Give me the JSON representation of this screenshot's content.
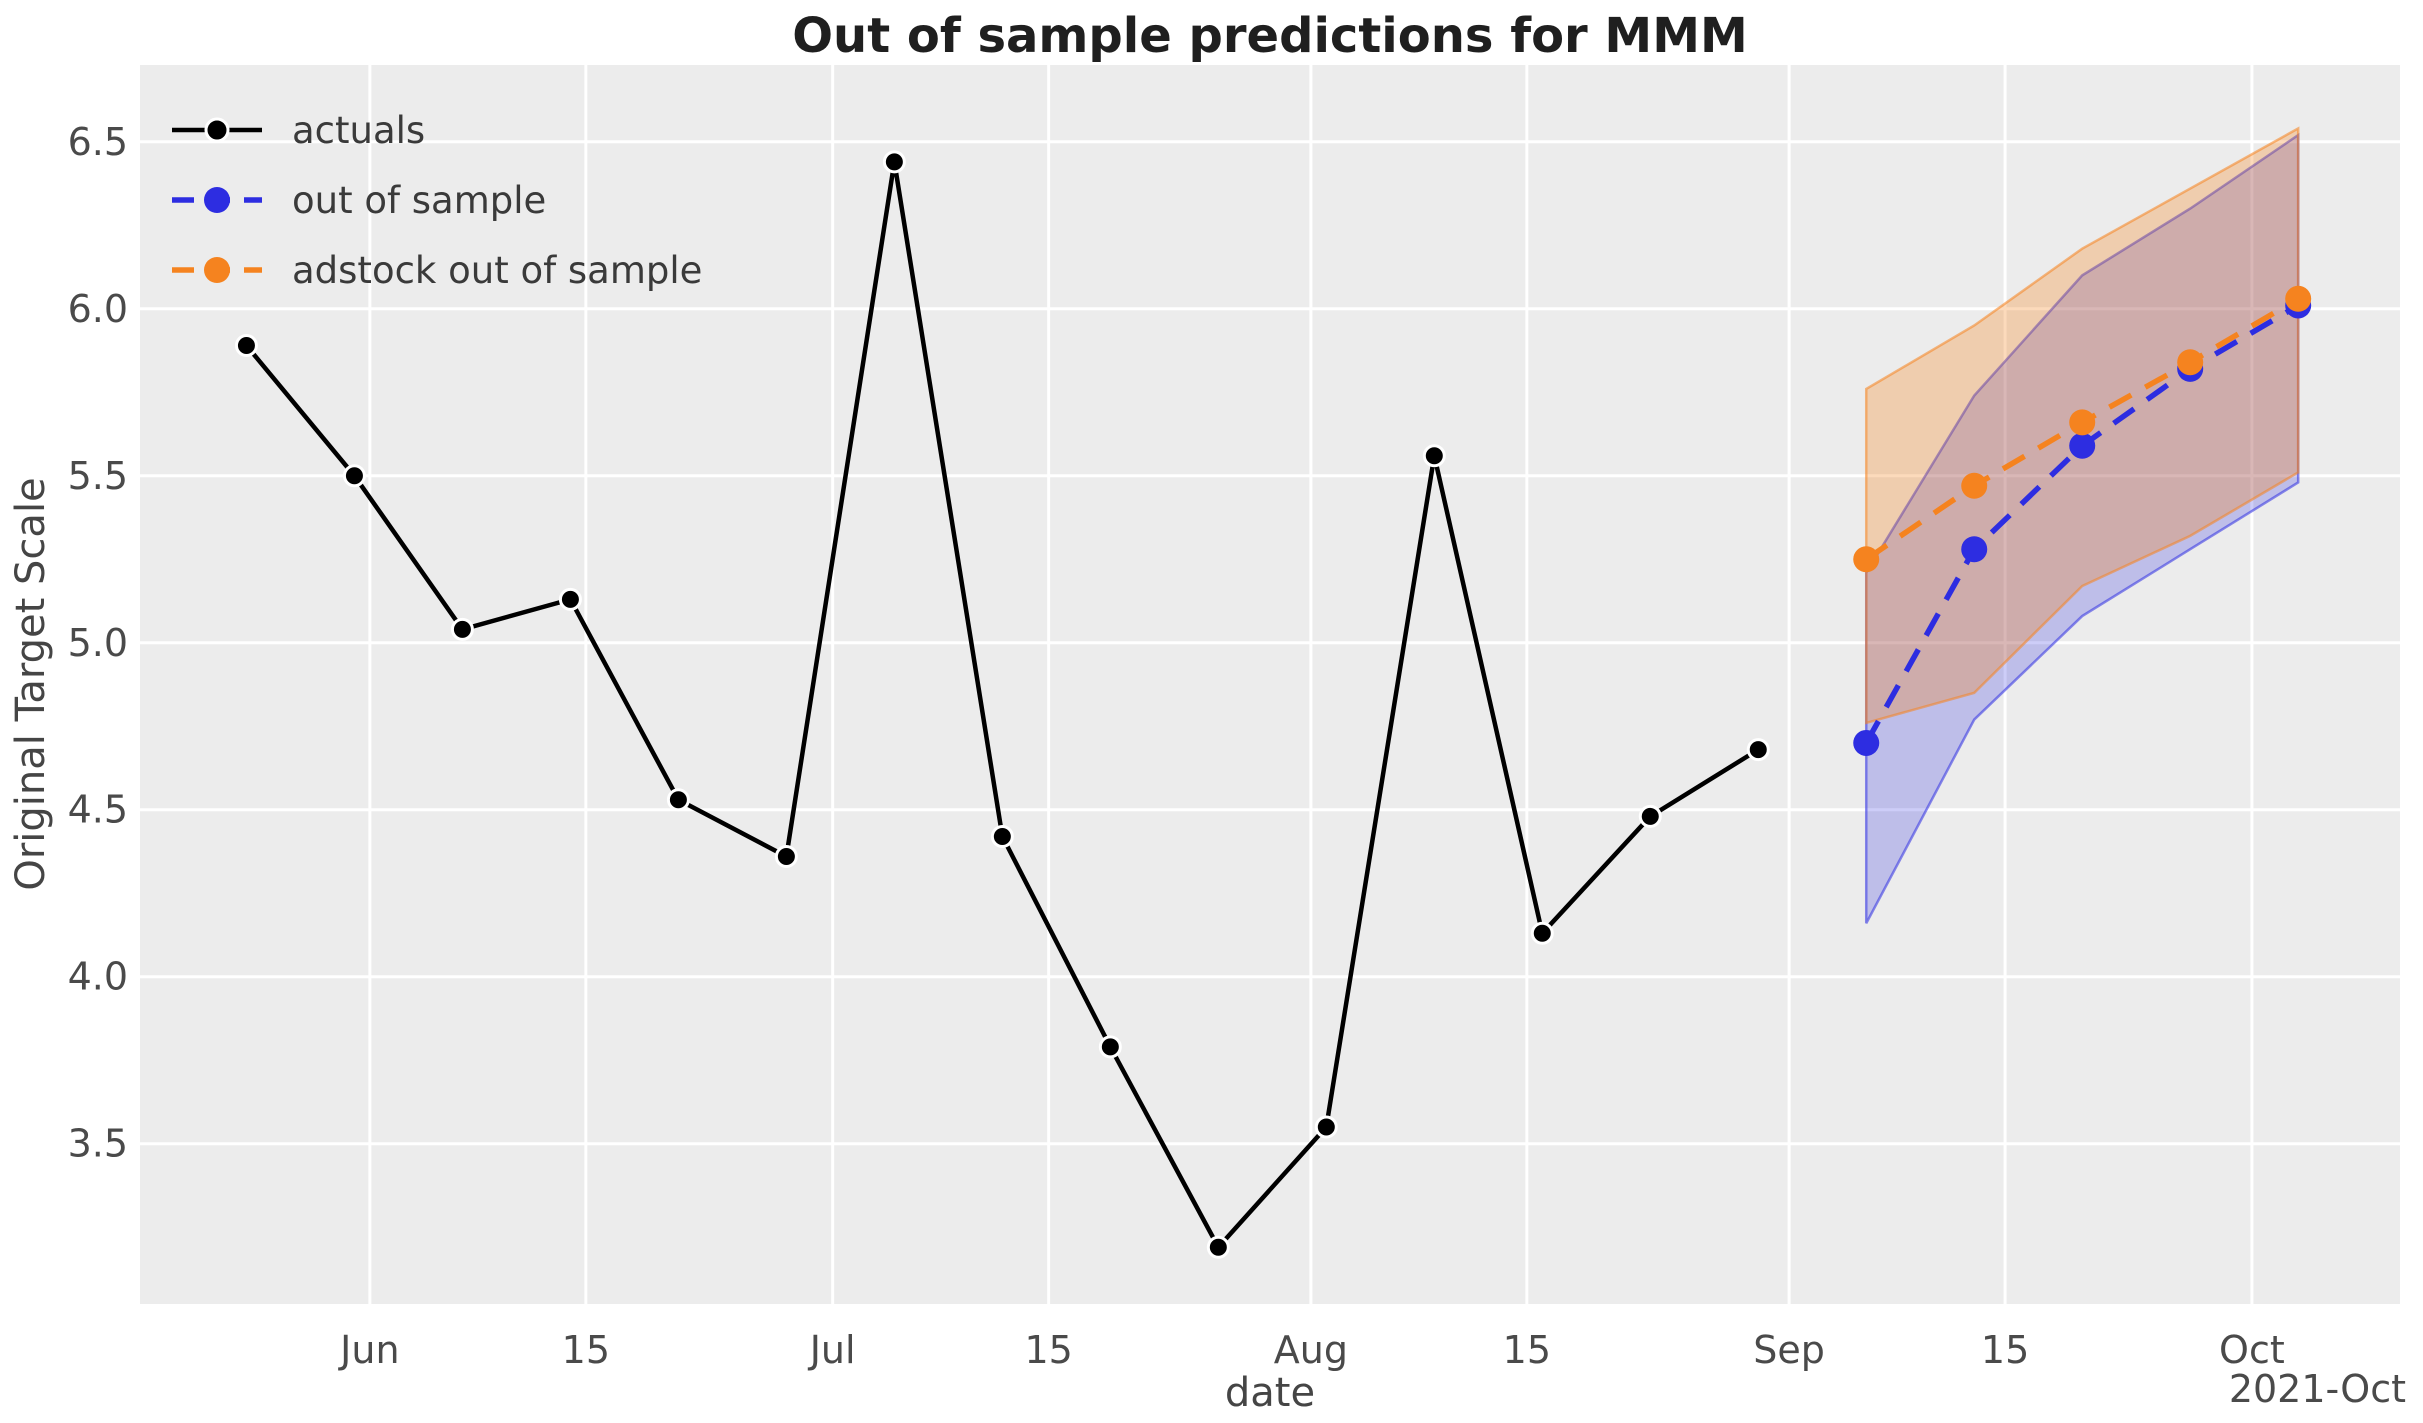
{
  "figure": {
    "background_color": "#ffffff",
    "plot_background_color": "#ececec",
    "grid_color": "#ffffff",
    "tick_text_color": "#4a4a4a",
    "title_color": "#1f1f1f"
  },
  "chart_data": {
    "type": "line",
    "title": "Out of sample predictions for MMM",
    "xlabel": "date",
    "ylabel": "Original Target Scale",
    "x_offset_label": "2021-Oct",
    "grid": true,
    "legend_position": "upper left",
    "x_epoch": "2021-05-24",
    "xlim_days": [
      -6.9,
      139.6
    ],
    "ylim": [
      3.02,
      6.73
    ],
    "xticks": [
      {
        "day": 8,
        "label": "Jun"
      },
      {
        "day": 22,
        "label": "15"
      },
      {
        "day": 38,
        "label": "Jul"
      },
      {
        "day": 52,
        "label": "15"
      },
      {
        "day": 69,
        "label": "Aug"
      },
      {
        "day": 83,
        "label": "15"
      },
      {
        "day": 100,
        "label": "Sep"
      },
      {
        "day": 114,
        "label": "15"
      },
      {
        "day": 130,
        "label": "Oct"
      }
    ],
    "yticks": [
      {
        "value": 3.5,
        "label": "3.5"
      },
      {
        "value": 4.0,
        "label": "4.0"
      },
      {
        "value": 4.5,
        "label": "4.5"
      },
      {
        "value": 5.0,
        "label": "5.0"
      },
      {
        "value": 5.5,
        "label": "5.5"
      },
      {
        "value": 6.0,
        "label": "6.0"
      },
      {
        "value": 6.5,
        "label": "6.5"
      }
    ],
    "series": [
      {
        "name": "actuals",
        "color": "#000000",
        "line_style": "solid",
        "line_width": 4.5,
        "marker_radius": 10,
        "marker_edge_color": "#ffffff",
        "dates": [
          "2021-05-24",
          "2021-05-31",
          "2021-06-07",
          "2021-06-14",
          "2021-06-21",
          "2021-06-28",
          "2021-07-05",
          "2021-07-12",
          "2021-07-19",
          "2021-07-26",
          "2021-08-02",
          "2021-08-09",
          "2021-08-16",
          "2021-08-23",
          "2021-08-30"
        ],
        "days": [
          0,
          7,
          14,
          21,
          28,
          35,
          42,
          49,
          56,
          63,
          70,
          77,
          84,
          91,
          98
        ],
        "values": [
          5.89,
          5.5,
          5.04,
          5.13,
          4.53,
          4.36,
          6.44,
          4.42,
          3.79,
          3.19,
          3.55,
          5.56,
          4.13,
          4.48,
          4.68
        ]
      },
      {
        "name": "out of sample",
        "color": "#2d2de1",
        "line_style": "dashed",
        "line_width": 5.5,
        "marker_radius": 13,
        "band_fill_alpha": 0.24,
        "dates": [
          "2021-09-06",
          "2021-09-13",
          "2021-09-20",
          "2021-09-27",
          "2021-10-04"
        ],
        "days": [
          105,
          112,
          119,
          126,
          133
        ],
        "values": [
          4.7,
          5.28,
          5.59,
          5.82,
          6.01
        ],
        "band_upper": [
          5.21,
          5.74,
          6.1,
          6.3,
          6.52
        ],
        "band_lower": [
          4.16,
          4.77,
          5.08,
          5.28,
          5.48
        ]
      },
      {
        "name": "adstock out of sample",
        "color": "#f5831f",
        "line_style": "dashed",
        "line_width": 5.5,
        "marker_radius": 13,
        "band_fill_alpha": 0.3,
        "dates": [
          "2021-09-06",
          "2021-09-13",
          "2021-09-20",
          "2021-09-27",
          "2021-10-04"
        ],
        "days": [
          105,
          112,
          119,
          126,
          133
        ],
        "values": [
          5.25,
          5.47,
          5.66,
          5.84,
          6.03
        ],
        "band_upper": [
          5.76,
          5.95,
          6.18,
          6.36,
          6.54
        ],
        "band_lower": [
          4.76,
          4.85,
          5.17,
          5.32,
          5.51
        ]
      }
    ]
  }
}
